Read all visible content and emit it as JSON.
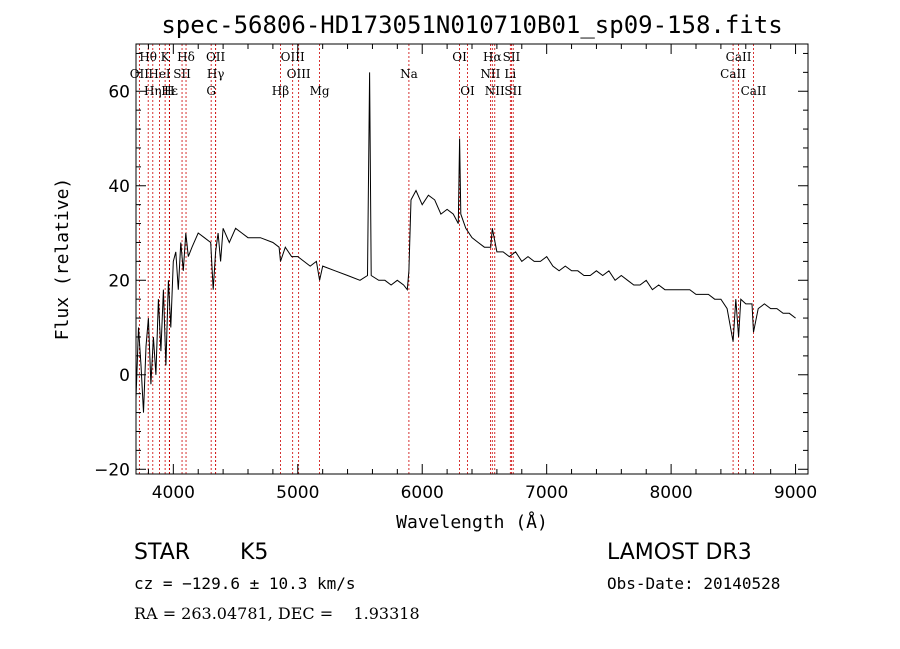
{
  "chart_data": {
    "type": "line",
    "title": "spec-56806-HD173051N010710B01_sp09-158.fits",
    "xlabel": "Wavelength (Å)",
    "ylabel": "Flux (relative)",
    "xlim": [
      3700,
      9100
    ],
    "ylim": [
      -21,
      70
    ],
    "xticks": [
      4000,
      5000,
      6000,
      7000,
      8000,
      9000
    ],
    "yticks": [
      -20,
      0,
      20,
      40,
      60
    ],
    "xtick_labels": [
      "4000",
      "5000",
      "6000",
      "7000",
      "8000",
      "9000"
    ],
    "ytick_labels": [
      "−20",
      "0",
      "20",
      "40",
      "60"
    ],
    "series": [
      {
        "name": "flux",
        "x": [
          3700,
          3720,
          3740,
          3760,
          3780,
          3800,
          3820,
          3840,
          3860,
          3880,
          3900,
          3920,
          3940,
          3960,
          3980,
          4000,
          4020,
          4040,
          4060,
          4080,
          4100,
          4120,
          4150,
          4200,
          4250,
          4300,
          4320,
          4340,
          4360,
          4380,
          4400,
          4450,
          4500,
          4550,
          4600,
          4700,
          4800,
          4850,
          4861,
          4900,
          4950,
          5000,
          5050,
          5100,
          5150,
          5175,
          5200,
          5300,
          5400,
          5500,
          5560,
          5577,
          5590,
          5650,
          5700,
          5750,
          5800,
          5850,
          5880,
          5893,
          5910,
          5950,
          6000,
          6050,
          6100,
          6150,
          6200,
          6250,
          6290,
          6300,
          6310,
          6350,
          6400,
          6450,
          6500,
          6550,
          6563,
          6600,
          6650,
          6700,
          6750,
          6800,
          6850,
          6900,
          6950,
          7000,
          7050,
          7100,
          7150,
          7200,
          7250,
          7300,
          7350,
          7400,
          7450,
          7500,
          7550,
          7600,
          7650,
          7700,
          7750,
          7800,
          7850,
          7900,
          7950,
          8000,
          8050,
          8100,
          8150,
          8200,
          8250,
          8300,
          8350,
          8400,
          8450,
          8498,
          8520,
          8542,
          8560,
          8600,
          8650,
          8662,
          8700,
          8750,
          8800,
          8850,
          8900,
          8950,
          9000
        ],
        "y": [
          -5,
          10,
          2,
          -8,
          6,
          12,
          -2,
          8,
          0,
          16,
          5,
          18,
          2,
          20,
          10,
          24,
          26,
          18,
          28,
          22,
          30,
          25,
          27,
          30,
          29,
          28,
          18,
          26,
          30,
          24,
          31,
          28,
          31,
          30,
          29,
          29,
          28,
          27,
          24,
          27,
          25,
          25,
          24,
          23,
          24,
          20,
          23,
          22,
          21,
          20,
          21,
          64,
          21,
          20,
          20,
          19,
          20,
          19,
          18,
          22,
          37,
          39,
          36,
          38,
          37,
          34,
          35,
          34,
          32,
          50,
          34,
          31,
          29,
          28,
          27,
          27,
          31,
          26,
          26,
          25,
          26,
          24,
          25,
          24,
          24,
          25,
          23,
          22,
          23,
          22,
          22,
          21,
          21,
          22,
          21,
          22,
          20,
          21,
          20,
          19,
          19,
          20,
          18,
          19,
          18,
          18,
          18,
          18,
          18,
          17,
          17,
          17,
          16,
          16,
          14,
          7,
          16,
          8,
          16,
          15,
          15,
          9,
          14,
          15,
          14,
          14,
          13,
          13,
          12
        ]
      }
    ],
    "spectral_lines": [
      {
        "label": "Hθ",
        "wl": 3798,
        "row": 0
      },
      {
        "label": "K",
        "wl": 3934,
        "row": 0
      },
      {
        "label": "Hδ",
        "wl": 4102,
        "row": 0
      },
      {
        "label": "OII",
        "wl": 4340,
        "row": 0
      },
      {
        "label": "OIII",
        "wl": 4959,
        "row": 0
      },
      {
        "label": "OI",
        "wl": 6300,
        "row": 0
      },
      {
        "label": "Hα",
        "wl": 6563,
        "row": 0
      },
      {
        "label": "SII",
        "wl": 6717,
        "row": 0
      },
      {
        "label": "CaII",
        "wl": 8542,
        "row": 0
      },
      {
        "label": "OII",
        "wl": 3727,
        "row": 1
      },
      {
        "label": "HeI",
        "wl": 3889,
        "row": 1
      },
      {
        "label": "SII",
        "wl": 4070,
        "row": 1
      },
      {
        "label": "Hγ",
        "wl": 4340,
        "row": 1
      },
      {
        "label": "OIII",
        "wl": 5007,
        "row": 1
      },
      {
        "label": "Na",
        "wl": 5893,
        "row": 1
      },
      {
        "label": "NII",
        "wl": 6548,
        "row": 1
      },
      {
        "label": "Li",
        "wl": 6708,
        "row": 1
      },
      {
        "label": "CaII",
        "wl": 8498,
        "row": 1
      },
      {
        "label": "Hε",
        "wl": 3970,
        "row": 2
      },
      {
        "label": "Hη",
        "wl": 3835,
        "row": 2
      },
      {
        "label": "H",
        "wl": 3968,
        "row": 2
      },
      {
        "label": "G",
        "wl": 4304,
        "row": 2
      },
      {
        "label": "Hβ",
        "wl": 4861,
        "row": 2
      },
      {
        "label": "Mg",
        "wl": 5175,
        "row": 2
      },
      {
        "label": "OI",
        "wl": 6364,
        "row": 2
      },
      {
        "label": "NII",
        "wl": 6583,
        "row": 2
      },
      {
        "label": "SII",
        "wl": 6731,
        "row": 2
      },
      {
        "label": "CaII",
        "wl": 8662,
        "row": 2
      }
    ],
    "line_color": "#000000",
    "marker_color": "#cc0000"
  },
  "info": {
    "object_class": "STAR",
    "subclass": "K5",
    "survey": "LAMOST DR3",
    "cz": "cz = −129.6 ± 10.3 km/s",
    "obs_date": "Obs-Date: 20140528",
    "coords": "RA = 263.04781, DEC =    1.93318"
  }
}
